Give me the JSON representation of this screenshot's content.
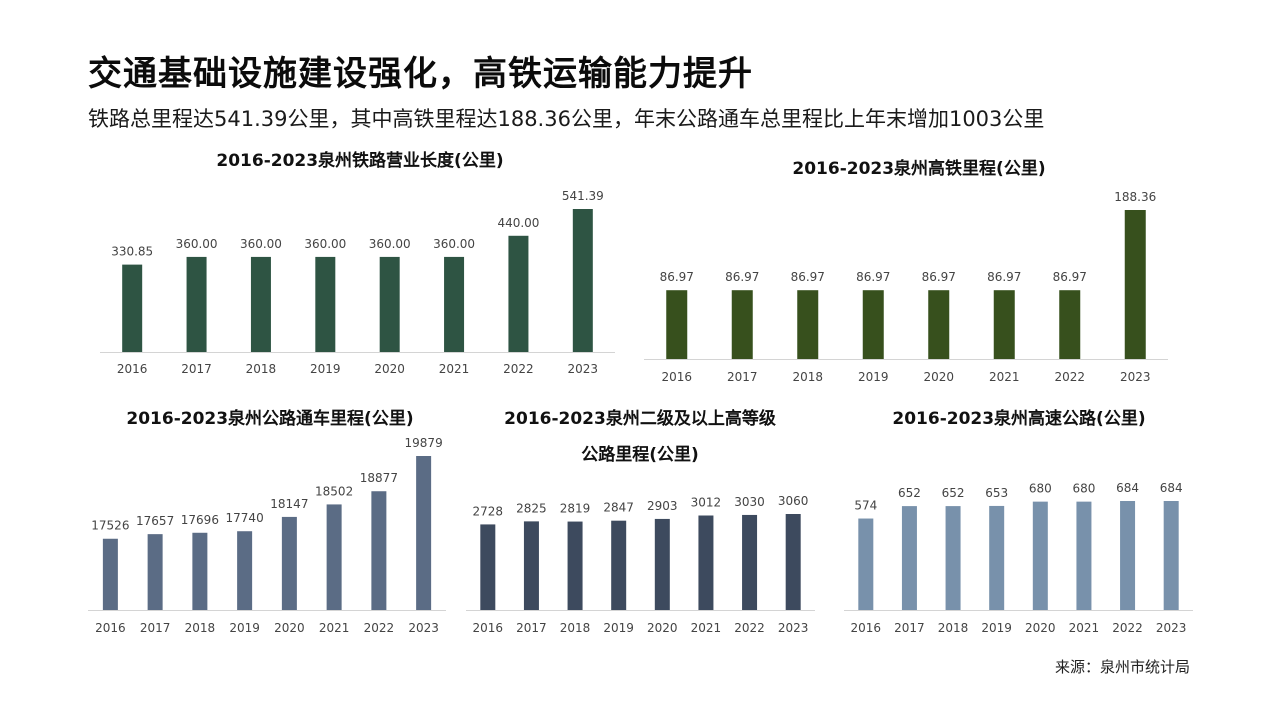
{
  "page": {
    "title": "交通基础设施建设强化，高铁运输能力提升",
    "subtitle": "铁路总里程达541.39公里，其中高铁里程达188.36公里，年末公路通车总里程比上年末增加1003公里",
    "source": "来源：泉州市统计局"
  },
  "colors": {
    "railway": "#2e5443",
    "highspeed": "#37501d",
    "highway": "#5b6c85",
    "grade2": "#3d4a5e",
    "expressway": "#7891ab",
    "axis": "#d4d4d4",
    "label": "#444444"
  },
  "chart_data": [
    {
      "id": "railway",
      "type": "bar",
      "title": "2016-2023泉州铁路营业长度(公里)",
      "categories": [
        "2016",
        "2017",
        "2018",
        "2019",
        "2020",
        "2021",
        "2022",
        "2023"
      ],
      "values": [
        330.85,
        360.0,
        360.0,
        360.0,
        360.0,
        360.0,
        440.0,
        541.39
      ],
      "labels": [
        "330.85",
        "360.00",
        "360.00",
        "360.00",
        "360.00",
        "360.00",
        "440.00",
        "541.39"
      ],
      "ylim": [
        0,
        541.39
      ]
    },
    {
      "id": "highspeed",
      "type": "bar",
      "title": "2016-2023泉州高铁里程(公里)",
      "categories": [
        "2016",
        "2017",
        "2018",
        "2019",
        "2020",
        "2021",
        "2022",
        "2023"
      ],
      "values": [
        86.97,
        86.97,
        86.97,
        86.97,
        86.97,
        86.97,
        86.97,
        188.36
      ],
      "labels": [
        "86.97",
        "86.97",
        "86.97",
        "86.97",
        "86.97",
        "86.97",
        "86.97",
        "188.36"
      ],
      "ylim": [
        0,
        188.36
      ]
    },
    {
      "id": "highway",
      "type": "bar",
      "title": "2016-2023泉州公路通车里程(公里)",
      "categories": [
        "2016",
        "2017",
        "2018",
        "2019",
        "2020",
        "2021",
        "2022",
        "2023"
      ],
      "values": [
        17526,
        17657,
        17696,
        17740,
        18147,
        18502,
        18877,
        19879
      ],
      "labels": [
        "17526",
        "17657",
        "17696",
        "17740",
        "18147",
        "18502",
        "18877",
        "19879"
      ],
      "ylim": [
        15500,
        19879
      ]
    },
    {
      "id": "grade2",
      "type": "bar",
      "title": "2016-2023泉州二级及以上高等级公路里程(公里)",
      "title_lines": [
        "2016-2023泉州二级及以上高等级",
        "公路里程(公里)"
      ],
      "categories": [
        "2016",
        "2017",
        "2018",
        "2019",
        "2020",
        "2021",
        "2022",
        "2023"
      ],
      "values": [
        2728,
        2825,
        2819,
        2847,
        2903,
        3012,
        3030,
        3060
      ],
      "labels": [
        "2728",
        "2825",
        "2819",
        "2847",
        "2903",
        "3012",
        "3030",
        "3060"
      ],
      "ylim": [
        0,
        3060
      ]
    },
    {
      "id": "expressway",
      "type": "bar",
      "title": "2016-2023泉州高速公路(公里)",
      "categories": [
        "2016",
        "2017",
        "2018",
        "2019",
        "2020",
        "2021",
        "2022",
        "2023"
      ],
      "values": [
        574,
        652,
        652,
        653,
        680,
        680,
        684,
        684
      ],
      "labels": [
        "574",
        "652",
        "652",
        "653",
        "680",
        "680",
        "684",
        "684"
      ],
      "ylim": [
        0,
        684
      ]
    }
  ]
}
